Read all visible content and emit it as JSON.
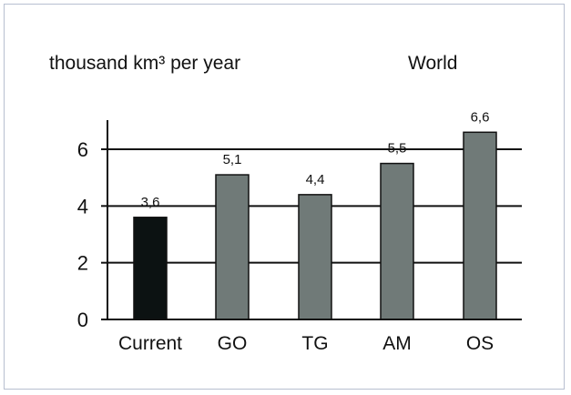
{
  "chart_data": {
    "type": "bar",
    "title": "World",
    "ylabel": "thousand km³ per year",
    "xlabel": "",
    "categories": [
      "Current",
      "GO",
      "TG",
      "AM",
      "OS"
    ],
    "values": [
      3.6,
      5.1,
      4.4,
      5.5,
      6.6
    ],
    "value_labels": [
      "3,6",
      "5,1",
      "4,4",
      "5,5",
      "6,6"
    ],
    "bar_colors": [
      "#0c1212",
      "#707a78",
      "#707a78",
      "#707a78",
      "#707a78"
    ],
    "ylim": [
      0,
      7
    ],
    "yticks": [
      0,
      2,
      4,
      6
    ],
    "ytick_labels": [
      "0",
      "2",
      "4",
      "6"
    ],
    "grid": true,
    "legend": "none"
  }
}
